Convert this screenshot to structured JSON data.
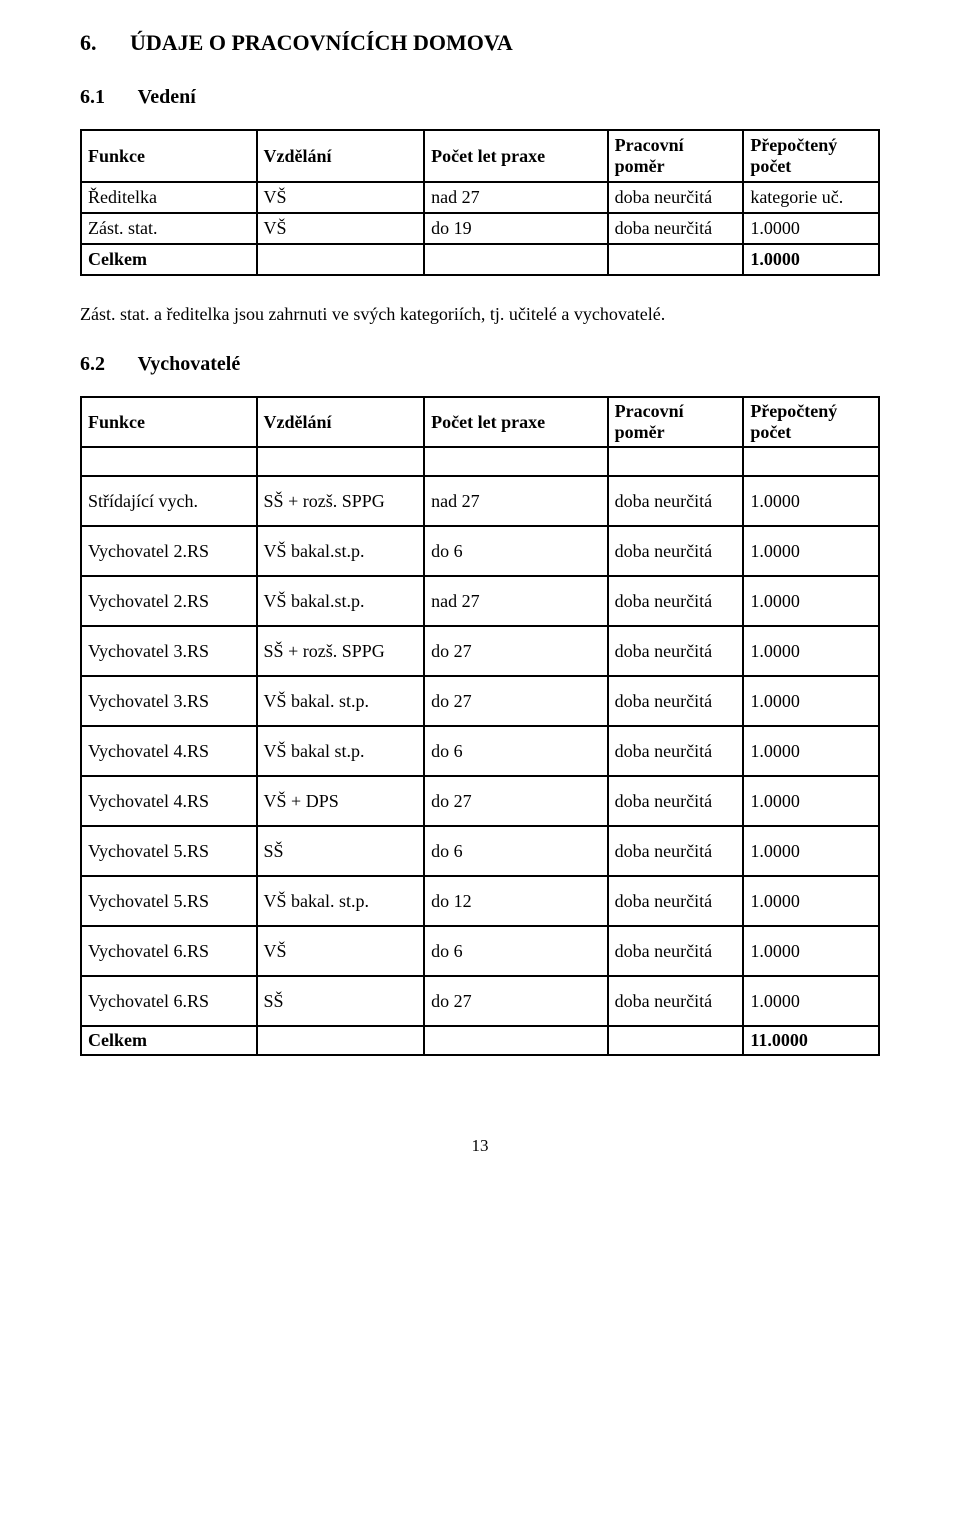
{
  "section": {
    "num": "6.",
    "title": "ÚDAJE O PRACOVNÍCÍCH DOMOVA"
  },
  "sub1": {
    "num": "6.1",
    "title": "Vedení"
  },
  "table1": {
    "headers": {
      "c1": "Funkce",
      "c2": "Vzdělání",
      "c3": "Počet let  praxe",
      "c4": "Pracovní poměr",
      "c5": "Přepočtený počet"
    },
    "rows": [
      {
        "funkce": "Ředitelka",
        "vzd": "VŠ",
        "praxe": "nad 27",
        "pomer": "doba neurčitá",
        "pocet": "kategorie uč."
      },
      {
        "funkce": "Zást. stat.",
        "vzd": "VŠ",
        "praxe": "do 19",
        "pomer": "doba neurčitá",
        "pocet": "1.0000"
      }
    ],
    "total_label": "Celkem",
    "total_value": "1.0000"
  },
  "note": "Zást. stat. a ředitelka jsou zahrnuti ve svých kategoriích, tj. učitelé a vychovatelé.",
  "sub2": {
    "num": "6.2",
    "title": "Vychovatelé"
  },
  "table2": {
    "headers": {
      "c1": "Funkce",
      "c2": "Vzdělání",
      "c3": "Počet let  praxe",
      "c4": "Pracovní poměr",
      "c5": "Přepočtený počet"
    },
    "rows": [
      {
        "funkce": "Střídající vych.",
        "vzd": "SŠ + rozš. SPPG",
        "praxe": "nad 27",
        "pomer": "doba neurčitá",
        "pocet": "1.0000"
      },
      {
        "funkce": "Vychovatel 2.RS",
        "vzd": "VŠ  bakal.st.p.",
        "praxe": "do 6",
        "pomer": "doba neurčitá",
        "pocet": "1.0000"
      },
      {
        "funkce": "Vychovatel 2.RS",
        "vzd": "VŠ bakal.st.p.",
        "praxe": "nad 27",
        "pomer": "doba neurčitá",
        "pocet": "1.0000"
      },
      {
        "funkce": "Vychovatel 3.RS",
        "vzd": "SŠ + rozš. SPPG",
        "praxe": "do 27",
        "pomer": "doba neurčitá",
        "pocet": "1.0000"
      },
      {
        "funkce": "Vychovatel 3.RS",
        "vzd": "VŠ bakal. st.p.",
        "praxe": "do 27",
        "pomer": "doba neurčitá",
        "pocet": "1.0000"
      },
      {
        "funkce": "Vychovatel 4.RS",
        "vzd": "VŠ bakal st.p.",
        "praxe": "do 6",
        "pomer": "doba neurčitá",
        "pocet": "1.0000"
      },
      {
        "funkce": "Vychovatel 4.RS",
        "vzd": "VŠ + DPS",
        "praxe": "do 27",
        "pomer": "doba neurčitá",
        "pocet": "1.0000"
      },
      {
        "funkce": "Vychovatel 5.RS",
        "vzd": "SŠ",
        "praxe": "do 6",
        "pomer": "doba neurčitá",
        "pocet": "1.0000"
      },
      {
        "funkce": "Vychovatel 5.RS",
        "vzd": "VŠ bakal. st.p.",
        "praxe": "do 12",
        "pomer": "doba neurčitá",
        "pocet": "1.0000"
      },
      {
        "funkce": "Vychovatel 6.RS",
        "vzd": "VŠ",
        "praxe": "do 6",
        "pomer": "doba neurčitá",
        "pocet": "1.0000"
      },
      {
        "funkce": "Vychovatel 6.RS",
        "vzd": "SŠ",
        "praxe": "do 27",
        "pomer": "doba neurčitá",
        "pocet": "1.0000"
      }
    ],
    "total_label": "Celkem",
    "total_value": "11.0000"
  },
  "page_number": "13",
  "colors": {
    "text": "#000000",
    "background": "#ffffff",
    "border": "#000000"
  }
}
